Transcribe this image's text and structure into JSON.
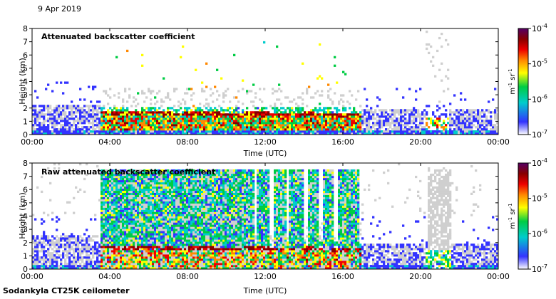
{
  "date_label": "9 Apr 2019",
  "footer_label": "Sodankyla CT25K ceilometer",
  "colormap": [
    "#ffffff",
    "#3333ff",
    "#00cccc",
    "#00cc44",
    "#ffff00",
    "#ff8800",
    "#ee0000",
    "#880000",
    "#550066"
  ],
  "chart_data": [
    {
      "type": "heatmap",
      "title": "Attenuated backscatter coefficient",
      "xlabel": "Time (UTC)",
      "ylabel": "Height (km)",
      "xlim": [
        0,
        24
      ],
      "ylim": [
        0,
        8
      ],
      "x_ticks": [
        "00:00",
        "04:00",
        "08:00",
        "12:00",
        "16:00",
        "20:00",
        "00:00"
      ],
      "y_ticks": [
        "0",
        "1",
        "2",
        "3",
        "4",
        "5",
        "6",
        "7",
        "8"
      ],
      "colorbar": {
        "label": "m",
        "label_sup1": "-1",
        "label_mid": " sr",
        "label_sup2": "-1",
        "ticks": [
          {
            "base": "10",
            "exp": "-4"
          },
          {
            "base": "10",
            "exp": "-5"
          },
          {
            "base": "10",
            "exp": "-6"
          },
          {
            "base": "10",
            "exp": "-7"
          }
        ],
        "scale": "log",
        "range": [
          1e-07,
          0.0001
        ]
      }
    },
    {
      "type": "heatmap",
      "title": "Raw attenuated backscatter coefficient",
      "xlabel": "Time (UTC)",
      "ylabel": "Height (km)",
      "xlim": [
        0,
        24
      ],
      "ylim": [
        0,
        8
      ],
      "x_ticks": [
        "00:00",
        "04:00",
        "08:00",
        "12:00",
        "16:00",
        "20:00",
        "00:00"
      ],
      "y_ticks": [
        "0",
        "1",
        "2",
        "3",
        "4",
        "5",
        "6",
        "7",
        "8"
      ],
      "colorbar": {
        "label": "m",
        "label_sup1": "-1",
        "label_mid": " sr",
        "label_sup2": "-1",
        "ticks": [
          {
            "base": "10",
            "exp": "-4"
          },
          {
            "base": "10",
            "exp": "-5"
          },
          {
            "base": "10",
            "exp": "-6"
          },
          {
            "base": "10",
            "exp": "-7"
          }
        ],
        "scale": "log",
        "range": [
          1e-07,
          0.0001
        ]
      }
    }
  ]
}
